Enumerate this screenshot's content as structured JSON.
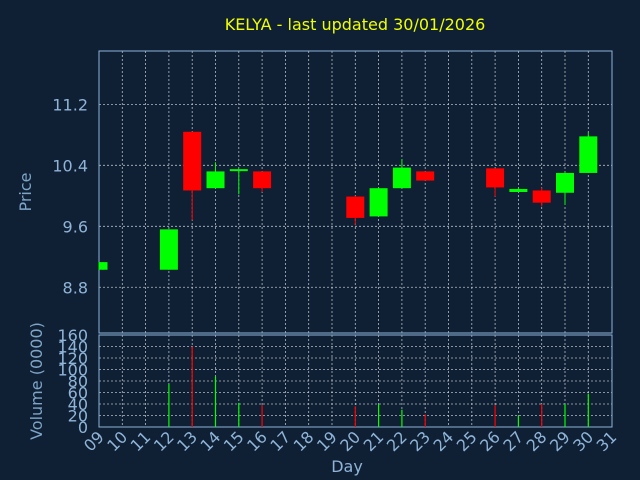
{
  "chart_data": [
    {
      "type": "candlestick",
      "title": "KELYA - last updated 30/01/2026",
      "ylabel": "Price",
      "ylim": [
        8.2,
        11.9
      ],
      "yticks": [
        "8.8",
        "9.6",
        "10.4",
        "11.2"
      ],
      "grid": true,
      "x": [
        "09",
        "10",
        "11",
        "12",
        "13",
        "14",
        "15",
        "16",
        "17",
        "18",
        "19",
        "20",
        "21",
        "22",
        "23",
        "24",
        "25",
        "26",
        "27",
        "28",
        "29",
        "30",
        "31"
      ],
      "candles": [
        {
          "day": "09",
          "open": 9.03,
          "high": 9.13,
          "low": 9.03,
          "close": 9.13
        },
        {
          "day": "12",
          "open": 9.03,
          "high": 9.56,
          "low": 9.03,
          "close": 9.56
        },
        {
          "day": "13",
          "open": 10.84,
          "high": 10.84,
          "low": 9.68,
          "close": 10.07
        },
        {
          "day": "14",
          "open": 10.1,
          "high": 10.44,
          "low": 10.1,
          "close": 10.32
        },
        {
          "day": "15",
          "open": 10.33,
          "high": 10.35,
          "low": 10.02,
          "close": 10.35
        },
        {
          "day": "16",
          "open": 10.32,
          "high": 10.32,
          "low": 10.05,
          "close": 10.1
        },
        {
          "day": "20",
          "open": 9.99,
          "high": 10.0,
          "low": 9.62,
          "close": 9.71
        },
        {
          "day": "21",
          "open": 9.73,
          "high": 10.11,
          "low": 9.73,
          "close": 10.1
        },
        {
          "day": "22",
          "open": 10.1,
          "high": 10.48,
          "low": 10.1,
          "close": 10.37
        },
        {
          "day": "23",
          "open": 10.32,
          "high": 10.32,
          "low": 10.2,
          "close": 10.2
        },
        {
          "day": "26",
          "open": 10.36,
          "high": 10.36,
          "low": 9.99,
          "close": 10.11
        },
        {
          "day": "27",
          "open": 10.05,
          "high": 10.1,
          "low": 10.05,
          "close": 10.09
        },
        {
          "day": "28",
          "open": 10.07,
          "high": 10.11,
          "low": 9.86,
          "close": 9.91
        },
        {
          "day": "29",
          "open": 10.04,
          "high": 10.31,
          "low": 9.88,
          "close": 10.3
        },
        {
          "day": "30",
          "open": 10.3,
          "high": 10.83,
          "low": 10.3,
          "close": 10.78
        }
      ]
    },
    {
      "type": "bar",
      "ylabel": "Volume (0000)",
      "xlabel": "Day",
      "ylim": [
        0,
        160
      ],
      "yticks": [
        "0",
        "20",
        "40",
        "60",
        "80",
        "100",
        "120",
        "140",
        "160"
      ],
      "x": [
        "09",
        "10",
        "11",
        "12",
        "13",
        "14",
        "15",
        "16",
        "17",
        "18",
        "19",
        "20",
        "21",
        "22",
        "23",
        "24",
        "25",
        "26",
        "27",
        "28",
        "29",
        "30",
        "31"
      ],
      "bars": [
        {
          "day": "12",
          "value": 75,
          "color": "#00ff00"
        },
        {
          "day": "13",
          "value": 140,
          "color": "#ff0000"
        },
        {
          "day": "14",
          "value": 88,
          "color": "#00ff00"
        },
        {
          "day": "15",
          "value": 42,
          "color": "#00ff00"
        },
        {
          "day": "16",
          "value": 38,
          "color": "#ff0000"
        },
        {
          "day": "20",
          "value": 36,
          "color": "#ff0000"
        },
        {
          "day": "21",
          "value": 40,
          "color": "#00ff00"
        },
        {
          "day": "22",
          "value": 30,
          "color": "#00ff00"
        },
        {
          "day": "23",
          "value": 22,
          "color": "#ff0000"
        },
        {
          "day": "26",
          "value": 38,
          "color": "#ff0000"
        },
        {
          "day": "27",
          "value": 20,
          "color": "#00ff00"
        },
        {
          "day": "28",
          "value": 40,
          "color": "#ff0000"
        },
        {
          "day": "29",
          "value": 40,
          "color": "#00ff00"
        },
        {
          "day": "30",
          "value": 58,
          "color": "#00ff00"
        }
      ]
    }
  ],
  "colors": {
    "up": "#00ff00",
    "down": "#ff0000",
    "title": "#f0ff00",
    "axis": "#8fb4d8",
    "background": "#0f2034"
  }
}
